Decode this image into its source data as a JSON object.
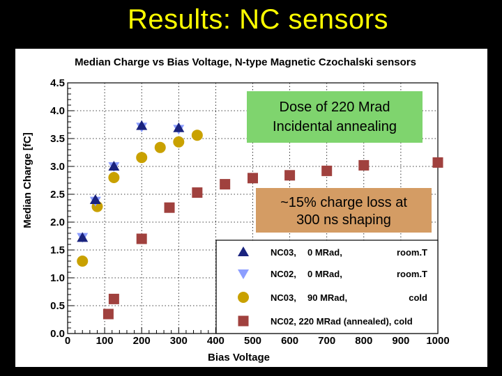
{
  "slide": {
    "title": "Results: NC sensors"
  },
  "chart_data": {
    "type": "scatter",
    "title": "Median Charge vs Bias Voltage, N-type Magnetic Czochalski sensors",
    "xlabel": "Bias Voltage",
    "ylabel": "Median Charge [fC]",
    "xlim": [
      0,
      1000
    ],
    "ylim": [
      0,
      4.5
    ],
    "x_ticks": [
      "0",
      "100",
      "200",
      "300",
      "400",
      "500",
      "600",
      "700",
      "800",
      "900",
      "1000"
    ],
    "y_ticks": [
      "0.0",
      "0.5",
      "1.0",
      "1.5",
      "2.0",
      "2.5",
      "3.0",
      "3.5",
      "4.0",
      "4.5"
    ],
    "grid": true,
    "legend_position": "bottom-right",
    "series": [
      {
        "name": "NC03,   0 MRad,   room.T",
        "legend_parts": [
          "NC03,",
          "0 MRad,",
          "room.T"
        ],
        "marker": "triangle-up",
        "color": "#1a237e",
        "points": [
          [
            40,
            1.72
          ],
          [
            75,
            2.4
          ],
          [
            125,
            3.0
          ],
          [
            200,
            3.73
          ],
          [
            300,
            3.69
          ]
        ]
      },
      {
        "name": "NC02,   0 MRad,   room.T",
        "legend_parts": [
          "NC02,",
          "0 MRad,",
          "room.T"
        ],
        "marker": "triangle-down",
        "color": "#8c9eff",
        "points": [
          [
            40,
            1.73
          ],
          [
            75,
            2.38
          ],
          [
            125,
            3.0
          ],
          [
            200,
            3.71
          ],
          [
            300,
            3.67
          ]
        ]
      },
      {
        "name": "NC03,   90 MRad,   cold",
        "legend_parts": [
          "NC03,",
          "90 MRad,",
          "cold"
        ],
        "marker": "circle",
        "color": "#c9a100",
        "points": [
          [
            40,
            1.3
          ],
          [
            80,
            2.28
          ],
          [
            125,
            2.8
          ],
          [
            200,
            3.16
          ],
          [
            250,
            3.34
          ],
          [
            300,
            3.44
          ],
          [
            350,
            3.56
          ]
        ]
      },
      {
        "name": "NC02, 220 MRad (annealed), cold",
        "legend_parts": [
          "NC02, 220 MRad (annealed), cold"
        ],
        "marker": "square",
        "color": "#a0413e",
        "points": [
          [
            110,
            0.35
          ],
          [
            125,
            0.62
          ],
          [
            200,
            1.7
          ],
          [
            275,
            2.26
          ],
          [
            350,
            2.53
          ],
          [
            425,
            2.68
          ],
          [
            500,
            2.79
          ],
          [
            600,
            2.84
          ],
          [
            700,
            2.92
          ],
          [
            800,
            3.02
          ],
          [
            1000,
            3.07
          ]
        ]
      }
    ],
    "annotations": [
      {
        "lines": [
          "Dose of 220 Mrad",
          "Incidental annealing"
        ],
        "color": "#7fd46e"
      },
      {
        "lines": [
          "~15% charge loss at",
          "300 ns shaping"
        ],
        "color": "#d49c64"
      }
    ]
  }
}
